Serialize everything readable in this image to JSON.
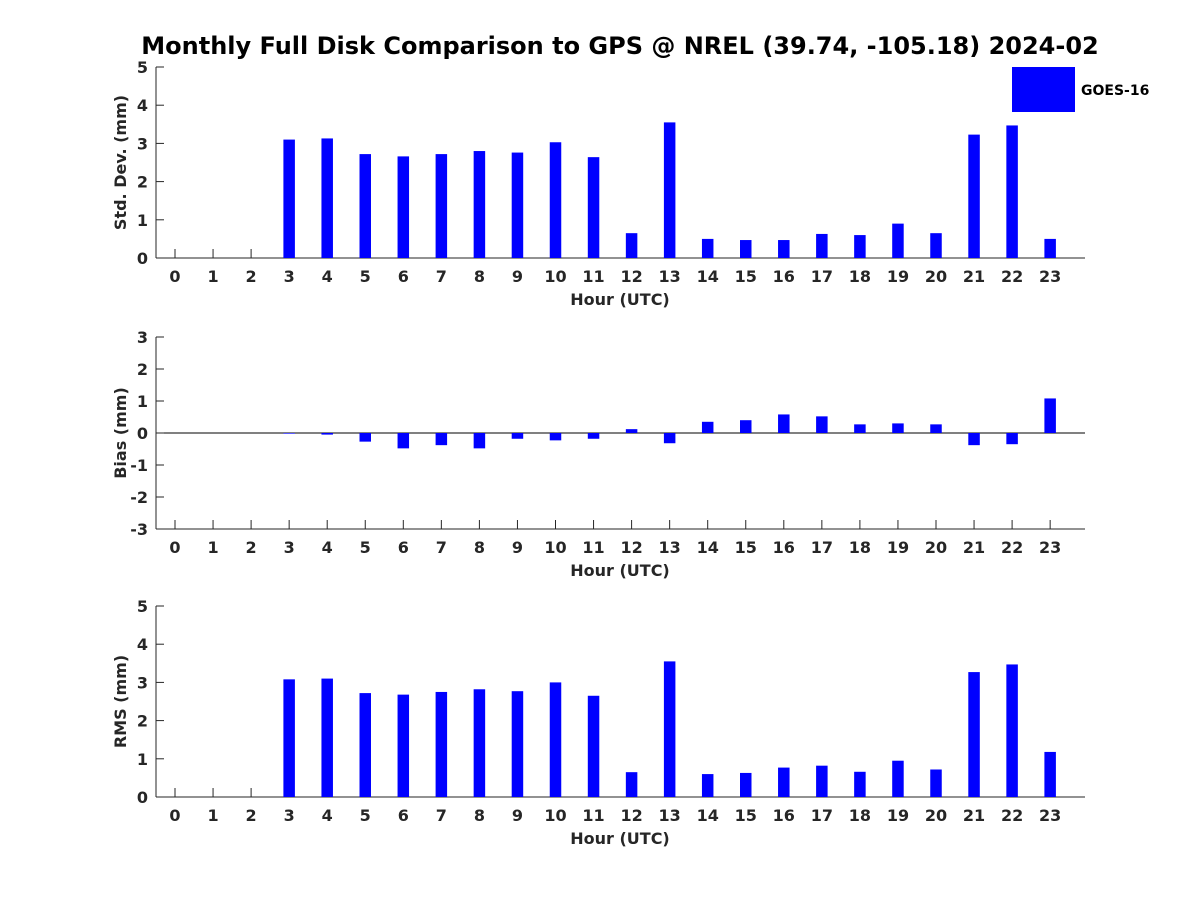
{
  "colors": {
    "bar": "#0000FF",
    "axis": "#262626",
    "background": "#FFFFFF"
  },
  "title": "Monthly Full Disk Comparison to GPS @ NREL (39.74, -105.18) 2024-02",
  "legend": {
    "label": "GOES-16",
    "placement": "top-right"
  },
  "chart_data": [
    {
      "type": "bar",
      "title": "Monthly Full Disk Comparison to GPS @ NREL (39.74, -105.18) 2024-02",
      "xlabel": "Hour (UTC)",
      "ylabel": "Std. Dev. (mm)",
      "ylim": [
        0,
        5
      ],
      "yticks": [
        0,
        1,
        2,
        3,
        4,
        5
      ],
      "categories": [
        0,
        1,
        2,
        3,
        4,
        5,
        6,
        7,
        8,
        9,
        10,
        11,
        12,
        13,
        14,
        15,
        16,
        17,
        18,
        19,
        20,
        21,
        22,
        23
      ],
      "series": [
        {
          "name": "GOES-16",
          "values": [
            null,
            null,
            null,
            3.1,
            3.13,
            2.72,
            2.66,
            2.72,
            2.8,
            2.76,
            3.03,
            2.64,
            0.65,
            3.55,
            0.5,
            0.47,
            0.47,
            0.63,
            0.6,
            0.9,
            0.65,
            3.23,
            3.47,
            0.5
          ]
        }
      ],
      "grid": false,
      "legend": "top-right"
    },
    {
      "type": "bar",
      "xlabel": "Hour (UTC)",
      "ylabel": "Bias (mm)",
      "ylim": [
        -3,
        3
      ],
      "yticks": [
        -3,
        -2,
        -1,
        0,
        1,
        2,
        3
      ],
      "categories": [
        0,
        1,
        2,
        3,
        4,
        5,
        6,
        7,
        8,
        9,
        10,
        11,
        12,
        13,
        14,
        15,
        16,
        17,
        18,
        19,
        20,
        21,
        22,
        23
      ],
      "series": [
        {
          "name": "GOES-16",
          "values": [
            null,
            null,
            null,
            -0.02,
            -0.05,
            -0.27,
            -0.48,
            -0.38,
            -0.48,
            -0.18,
            -0.23,
            -0.18,
            0.12,
            -0.32,
            0.35,
            0.4,
            0.58,
            0.52,
            0.27,
            0.3,
            0.27,
            -0.38,
            -0.35,
            1.08
          ]
        }
      ],
      "grid": false
    },
    {
      "type": "bar",
      "xlabel": "Hour (UTC)",
      "ylabel": "RMS (mm)",
      "ylim": [
        0,
        5
      ],
      "yticks": [
        0,
        1,
        2,
        3,
        4,
        5
      ],
      "categories": [
        0,
        1,
        2,
        3,
        4,
        5,
        6,
        7,
        8,
        9,
        10,
        11,
        12,
        13,
        14,
        15,
        16,
        17,
        18,
        19,
        20,
        21,
        22,
        23
      ],
      "series": [
        {
          "name": "GOES-16",
          "values": [
            null,
            null,
            null,
            3.08,
            3.1,
            2.72,
            2.68,
            2.75,
            2.82,
            2.77,
            3.0,
            2.65,
            0.65,
            3.55,
            0.6,
            0.63,
            0.77,
            0.82,
            0.66,
            0.95,
            0.72,
            3.27,
            3.47,
            1.18
          ]
        }
      ],
      "grid": false
    }
  ]
}
